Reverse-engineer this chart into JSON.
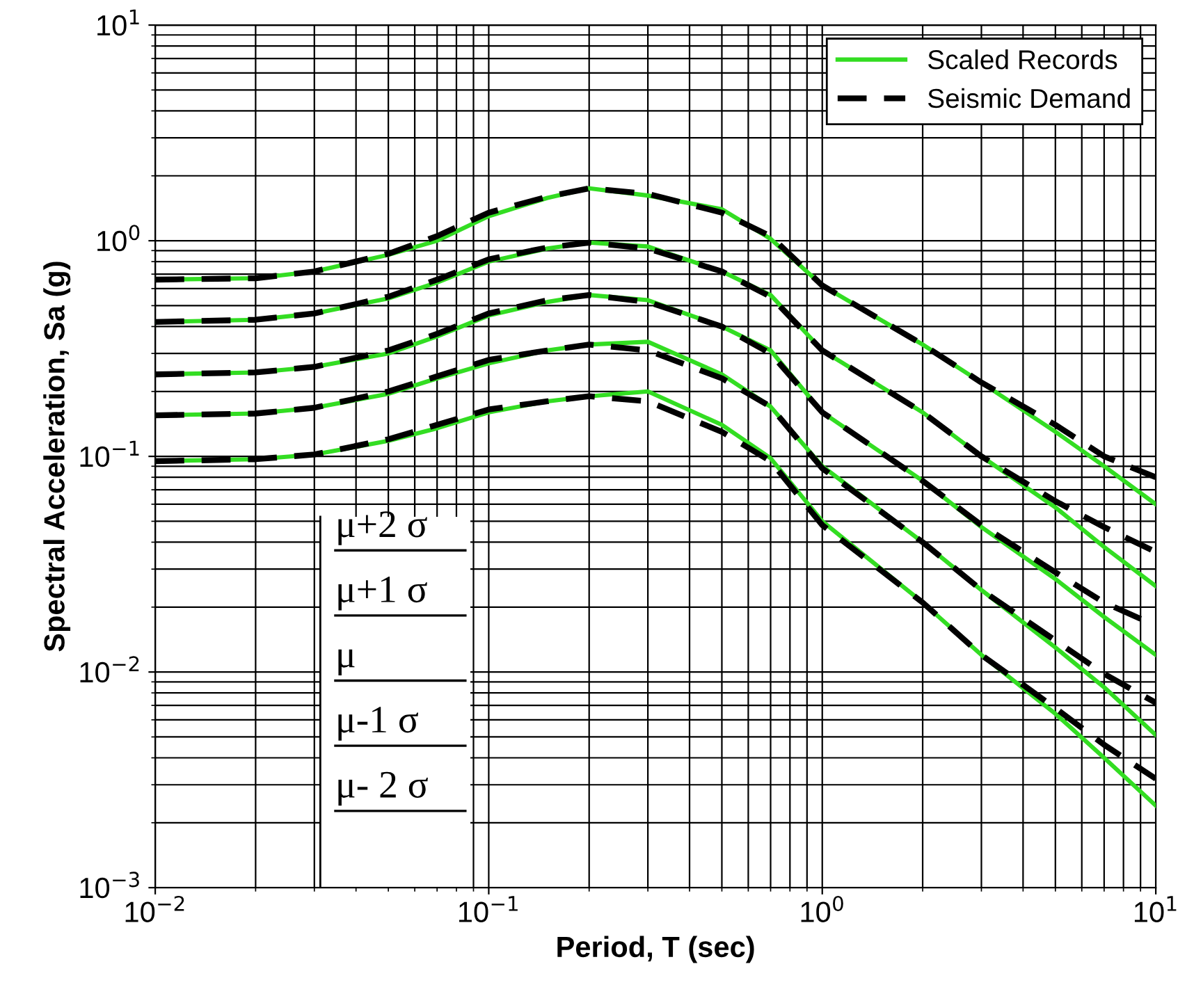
{
  "chart_data": {
    "type": "line",
    "xlabel": "Period, T (sec)",
    "ylabel": "Spectral Acceleration, Sa (g)",
    "log": "xy",
    "xlim": [
      0.01,
      10
    ],
    "ylim": [
      0.001,
      10
    ],
    "xticks": [
      {
        "value": 0.01,
        "label": "10$^{−2}$"
      },
      {
        "value": 0.1,
        "label": "10$^{−1}$"
      },
      {
        "value": 1,
        "label": "10$^{0}$"
      },
      {
        "value": 10,
        "label": "10$^{1}$"
      }
    ],
    "yticks": [
      {
        "value": 0.001,
        "label": "10$^{−3}$"
      },
      {
        "value": 0.01,
        "label": "10$^{−2}$"
      },
      {
        "value": 0.1,
        "label": "10$^{−1}$"
      },
      {
        "value": 1,
        "label": "10$^{0}$"
      },
      {
        "value": 10,
        "label": "10$^{1}$"
      }
    ],
    "grid": true,
    "legend": "top right",
    "x": [
      0.01,
      0.02,
      0.03,
      0.05,
      0.07,
      0.1,
      0.15,
      0.2,
      0.3,
      0.5,
      0.7,
      1,
      2,
      3,
      5,
      7,
      10
    ],
    "series": [
      {
        "name": "Scaled Records",
        "color": "#33dd22",
        "line_style": "solid",
        "values": [
          0.66,
          0.67,
          0.72,
          0.86,
          1.0,
          1.3,
          1.58,
          1.75,
          1.62,
          1.4,
          1.02,
          0.62,
          0.33,
          0.22,
          0.13,
          0.09,
          0.06
        ]
      },
      {
        "color": "#33dd22",
        "line_style": "solid",
        "values": [
          0.42,
          0.43,
          0.46,
          0.54,
          0.64,
          0.8,
          0.92,
          0.98,
          0.94,
          0.72,
          0.56,
          0.31,
          0.16,
          0.1,
          0.058,
          0.038,
          0.025
        ]
      },
      {
        "color": "#33dd22",
        "line_style": "solid",
        "values": [
          0.24,
          0.245,
          0.26,
          0.3,
          0.36,
          0.45,
          0.52,
          0.56,
          0.53,
          0.4,
          0.31,
          0.16,
          0.077,
          0.047,
          0.027,
          0.018,
          0.012
        ]
      },
      {
        "color": "#33dd22",
        "line_style": "solid",
        "values": [
          0.155,
          0.158,
          0.168,
          0.195,
          0.23,
          0.27,
          0.31,
          0.33,
          0.34,
          0.24,
          0.17,
          0.09,
          0.04,
          0.024,
          0.013,
          0.0085,
          0.0051
        ]
      },
      {
        "color": "#33dd22",
        "line_style": "solid",
        "values": [
          0.095,
          0.097,
          0.102,
          0.118,
          0.135,
          0.16,
          0.18,
          0.19,
          0.2,
          0.14,
          0.098,
          0.05,
          0.021,
          0.012,
          0.0064,
          0.004,
          0.0024
        ]
      },
      {
        "name": "Seismic Demand",
        "color": "#000000",
        "line_style": "dashed",
        "values": [
          0.66,
          0.67,
          0.72,
          0.87,
          1.05,
          1.35,
          1.6,
          1.75,
          1.65,
          1.35,
          1.05,
          0.62,
          0.33,
          0.22,
          0.14,
          0.1,
          0.08
        ]
      },
      {
        "color": "#000000",
        "line_style": "dashed",
        "values": [
          0.42,
          0.43,
          0.46,
          0.55,
          0.66,
          0.82,
          0.93,
          0.98,
          0.92,
          0.72,
          0.55,
          0.31,
          0.16,
          0.1,
          0.062,
          0.047,
          0.036
        ]
      },
      {
        "color": "#000000",
        "line_style": "dashed",
        "values": [
          0.24,
          0.245,
          0.26,
          0.31,
          0.37,
          0.46,
          0.53,
          0.56,
          0.52,
          0.4,
          0.3,
          0.16,
          0.077,
          0.048,
          0.029,
          0.021,
          0.0164
        ]
      },
      {
        "color": "#000000",
        "line_style": "dashed",
        "values": [
          0.155,
          0.158,
          0.168,
          0.2,
          0.235,
          0.28,
          0.31,
          0.33,
          0.31,
          0.23,
          0.17,
          0.088,
          0.04,
          0.024,
          0.014,
          0.0098,
          0.0072
        ]
      },
      {
        "color": "#000000",
        "line_style": "dashed",
        "values": [
          0.095,
          0.097,
          0.102,
          0.12,
          0.14,
          0.165,
          0.18,
          0.19,
          0.18,
          0.13,
          0.095,
          0.048,
          0.021,
          0.012,
          0.0068,
          0.0046,
          0.0032
        ]
      }
    ],
    "annotations": [
      "μ+2 σ",
      "μ+1 σ",
      "μ",
      "μ-1 σ",
      "μ- 2 σ"
    ]
  }
}
